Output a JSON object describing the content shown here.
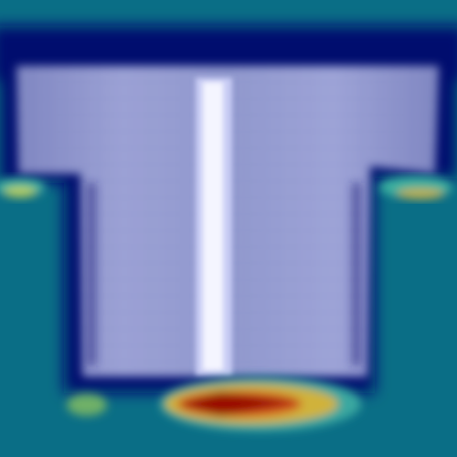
{
  "image": {
    "kind": "heatmap-overlay-on-garment-photo",
    "subject": "t-shirt",
    "palette": {
      "background": "#0a6e86",
      "border_dark": "#000a6e",
      "garment_base": "#8f97c8",
      "garment_highlight": "#eef0ff",
      "warm_low": "#5aa86a",
      "warm_mid": "#d8b23a",
      "warm_high": "#c8261a",
      "hot_core": "#7a0a00"
    }
  }
}
